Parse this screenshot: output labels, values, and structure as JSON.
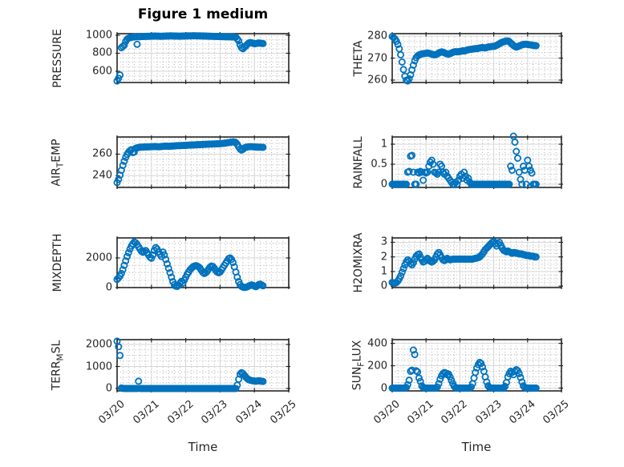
{
  "chart_data": {
    "type": "scatter",
    "title": "Figure 1 medium",
    "marker": {
      "shape": "open-circle",
      "color": "#0072BD"
    },
    "axis_color": "#262626",
    "grid": {
      "major_color": "#d6d6d6",
      "minor_color": "#b0b0b0",
      "minor_style": "dotted"
    },
    "x_axis": {
      "label": "Time",
      "start_day": 0,
      "step_hours": 1,
      "lim_days": [
        0,
        5
      ],
      "tick_days": [
        0,
        1,
        2,
        3,
        4,
        5
      ],
      "tick_labels": [
        "03/20",
        "03/21",
        "03/22",
        "03/23",
        "03/24",
        "03/25"
      ]
    },
    "subplots": [
      {
        "id": "pressure",
        "row": 0,
        "col": 0,
        "ylabel_parts": [
          {
            "text": "PRESSURE"
          }
        ],
        "ylim": [
          475,
          1018
        ],
        "yticks": [
          600,
          800,
          1000
        ],
        "ytick_labels": [
          "600",
          "800",
          "1000"
        ],
        "y_minor_step": 50,
        "values": [
          492,
          522,
          558,
          862,
          876,
          890,
          932,
          956,
          967,
          973,
          977,
          980,
          982,
          983,
          900,
          984,
          985,
          986,
          986,
          987,
          988,
          988,
          989,
          989,
          990,
          990,
          991,
          991,
          990,
          990,
          989,
          989,
          990,
          990,
          991,
          992,
          992,
          993,
          993,
          992,
          992,
          991,
          991,
          990,
          990,
          991,
          991,
          992,
          992,
          993,
          993,
          994,
          994,
          995,
          995,
          994,
          994,
          993,
          993,
          992,
          992,
          991,
          991,
          990,
          990,
          989,
          989,
          988,
          988,
          987,
          987,
          986,
          986,
          985,
          985,
          984,
          984,
          983,
          983,
          982,
          982,
          981,
          980,
          978,
          960,
          938,
          892,
          862,
          851,
          868,
          880,
          898,
          913,
          919,
          917,
          911,
          906,
          908,
          911,
          914,
          912,
          910,
          908
        ]
      },
      {
        "id": "theta",
        "row": 0,
        "col": 1,
        "ylabel_parts": [
          {
            "text": "THETA"
          }
        ],
        "ylim": [
          258.9,
          281.1
        ],
        "yticks": [
          260,
          270,
          280
        ],
        "ytick_labels": [
          "260",
          "270",
          "280"
        ],
        "y_minor_step": 2.5,
        "values": [
          279.8,
          279.3,
          278.6,
          277.6,
          276.2,
          274.2,
          271.5,
          268.2,
          264.8,
          261.8,
          259.9,
          259.6,
          260.6,
          262.4,
          264.6,
          266.8,
          268.8,
          270.2,
          271.0,
          271.4,
          271.7,
          271.9,
          272.0,
          272.1,
          272.2,
          272.3,
          272.2,
          272.0,
          271.8,
          271.6,
          271.5,
          271.6,
          271.9,
          272.3,
          272.6,
          272.8,
          272.7,
          272.4,
          272.1,
          271.9,
          271.8,
          272.0,
          272.3,
          272.6,
          272.8,
          272.9,
          272.8,
          272.9,
          273.0,
          273.1,
          273.3,
          273.2,
          273.4,
          273.6,
          273.8,
          273.9,
          274.0,
          274.1,
          274.2,
          274.3,
          274.3,
          274.4,
          274.6,
          274.7,
          274.8,
          274.7,
          274.6,
          274.8,
          275.0,
          275.1,
          275.2,
          275.3,
          275.3,
          275.5,
          275.8,
          276.1,
          276.5,
          276.9,
          277.2,
          277.4,
          277.6,
          277.8,
          277.8,
          277.5,
          276.9,
          276.3,
          275.7,
          275.3,
          275.0,
          275.2,
          275.5,
          275.8,
          276.0,
          276.2,
          276.3,
          276.3,
          276.2,
          276.1,
          276.0,
          275.9,
          275.8,
          275.7,
          275.6
        ]
      },
      {
        "id": "air_temp",
        "row": 1,
        "col": 0,
        "ylabel_parts": [
          {
            "text": "AIR"
          },
          {
            "text": "T",
            "sub": true
          },
          {
            "text": "EMP"
          }
        ],
        "ylim": [
          229,
          276
        ],
        "yticks": [
          240,
          260
        ],
        "ytick_labels": [
          "240",
          "260"
        ],
        "y_minor_step": 5,
        "values": [
          233.5,
          236.5,
          240.5,
          245.0,
          249.5,
          253.5,
          257.0,
          259.8,
          261.8,
          263.2,
          264.2,
          261.5,
          262.0,
          265.5,
          265.9,
          266.2,
          266.4,
          266.5,
          266.6,
          266.7,
          266.7,
          266.8,
          266.8,
          266.9,
          267.0,
          267.0,
          267.1,
          267.1,
          267.0,
          266.9,
          267.0,
          267.1,
          267.3,
          267.4,
          267.5,
          267.4,
          267.3,
          267.4,
          267.5,
          267.6,
          267.7,
          267.8,
          267.9,
          268.0,
          268.0,
          268.1,
          268.1,
          268.2,
          268.2,
          268.3,
          268.4,
          268.4,
          268.5,
          268.6,
          268.6,
          268.7,
          268.8,
          268.8,
          268.9,
          269.0,
          269.0,
          269.1,
          269.2,
          269.2,
          269.3,
          269.4,
          269.4,
          269.5,
          269.5,
          269.6,
          269.7,
          269.7,
          269.8,
          269.9,
          270.0,
          270.2,
          270.4,
          270.6,
          270.8,
          271.0,
          271.2,
          271.4,
          271.3,
          270.8,
          269.2,
          266.8,
          264.8,
          263.8,
          264.6,
          265.8,
          266.4,
          266.7,
          266.9,
          267.0,
          267.0,
          266.9,
          266.8,
          266.7,
          266.6,
          266.5,
          266.5,
          266.4,
          266.4
        ]
      },
      {
        "id": "rainfall",
        "row": 1,
        "col": 1,
        "ylabel_parts": [
          {
            "text": "RAINFALL"
          }
        ],
        "ylim": [
          -0.08,
          1.18
        ],
        "yticks": [
          0,
          0.5,
          1
        ],
        "ytick_labels": [
          "0",
          "0.5",
          "1"
        ],
        "y_minor_step": 0.125,
        "values": [
          0,
          0,
          0,
          0,
          0,
          0,
          0,
          0,
          0,
          0,
          0,
          0.3,
          0.32,
          0.7,
          0.72,
          0.3,
          0,
          0,
          0.3,
          0.28,
          0.32,
          0.3,
          0.1,
          0.3,
          0.28,
          0.3,
          0.45,
          0.55,
          0.6,
          0.5,
          0.3,
          0.28,
          0.25,
          0.3,
          0.5,
          0.45,
          0.3,
          0.25,
          0.3,
          0.2,
          0.15,
          0.1,
          0.05,
          0,
          0,
          0.05,
          0,
          0.1,
          0.2,
          0.25,
          0.15,
          0.3,
          0.2,
          0.1,
          0.15,
          0.05,
          0,
          0,
          0,
          0,
          0,
          0,
          0,
          0,
          0,
          0,
          0,
          0,
          0,
          0,
          0,
          0,
          0,
          0,
          0,
          0,
          0,
          0,
          0,
          0,
          0,
          0,
          0,
          0,
          0.45,
          0.35,
          1.2,
          1.05,
          0.82,
          0.65,
          0.3,
          0.12,
          0,
          0.45,
          0.35,
          0,
          0.6,
          0.45,
          0.35,
          0.28,
          0,
          0,
          0
        ]
      },
      {
        "id": "mixdepth",
        "row": 2,
        "col": 0,
        "ylabel_parts": [
          {
            "text": "MIXDEPTH"
          }
        ],
        "ylim": [
          0,
          3350
        ],
        "yticks": [
          0,
          2000
        ],
        "ytick_labels": [
          "0",
          "2000"
        ],
        "y_minor_step": 500,
        "values": [
          550,
          650,
          780,
          950,
          1200,
          1500,
          1800,
          2100,
          2350,
          2600,
          2800,
          2950,
          3080,
          3020,
          2900,
          2750,
          2600,
          2450,
          2380,
          2420,
          2500,
          2350,
          2200,
          2050,
          1980,
          2200,
          2500,
          2700,
          2600,
          2400,
          2250,
          2100,
          2400,
          2200,
          1900,
          1600,
          1300,
          1000,
          700,
          400,
          200,
          100,
          80,
          150,
          300,
          420,
          300,
          500,
          700,
          900,
          1050,
          1200,
          1300,
          1400,
          1450,
          1480,
          1450,
          1400,
          1300,
          1150,
          1020,
          950,
          1000,
          1100,
          1250,
          1380,
          1450,
          1420,
          1300,
          1150,
          1050,
          1000,
          1050,
          1200,
          1350,
          1500,
          1650,
          1800,
          1950,
          2000,
          1900,
          1700,
          1400,
          1050,
          700,
          400,
          200,
          80,
          30,
          10,
          20,
          50,
          100,
          150,
          180,
          150,
          100,
          60,
          120,
          200,
          230,
          180,
          120
        ]
      },
      {
        "id": "h2omixra",
        "row": 2,
        "col": 1,
        "ylabel_parts": [
          {
            "text": "H2OMIXRA"
          }
        ],
        "ylim": [
          -0.1,
          3.3
        ],
        "yticks": [
          0,
          1,
          2,
          3
        ],
        "ytick_labels": [
          "0",
          "1",
          "2",
          "3"
        ],
        "y_minor_step": 0.25,
        "values": [
          0.25,
          0.22,
          0.2,
          0.25,
          0.35,
          0.5,
          0.7,
          0.95,
          1.2,
          1.45,
          1.65,
          1.8,
          1.7,
          1.55,
          1.45,
          1.6,
          1.85,
          2.05,
          2.15,
          2.2,
          2.0,
          1.8,
          1.65,
          1.7,
          1.8,
          1.9,
          1.8,
          1.7,
          1.65,
          1.7,
          1.8,
          2.0,
          2.2,
          2.3,
          2.15,
          1.95,
          1.8,
          1.75,
          1.8,
          1.9,
          1.85,
          1.8,
          1.82,
          1.85,
          1.85,
          1.85,
          1.85,
          1.85,
          1.85,
          1.85,
          1.85,
          1.85,
          1.85,
          1.85,
          1.85,
          1.85,
          1.85,
          1.85,
          1.88,
          1.9,
          1.92,
          1.95,
          2.0,
          2.1,
          2.2,
          2.35,
          2.5,
          2.6,
          2.7,
          2.8,
          2.9,
          3.0,
          3.05,
          2.9,
          2.75,
          2.9,
          3.0,
          2.8,
          2.6,
          2.45,
          2.4,
          2.35,
          2.4,
          2.35,
          2.3,
          2.25,
          2.3,
          2.3,
          2.25,
          2.25,
          2.2,
          2.2,
          2.2,
          2.15,
          2.15,
          2.1,
          2.1,
          2.1,
          2.05,
          2.05,
          2.05,
          2.0,
          2.0
        ]
      },
      {
        "id": "terr_msl",
        "row": 3,
        "col": 0,
        "ylabel_parts": [
          {
            "text": "TERR"
          },
          {
            "text": "M",
            "sub": true
          },
          {
            "text": "SL"
          }
        ],
        "ylim": [
          -110,
          2220
        ],
        "yticks": [
          0,
          1000,
          2000
        ],
        "ytick_labels": [
          "0",
          "1000",
          "2000"
        ],
        "y_minor_step": 250,
        "values": [
          2150,
          1900,
          1500,
          20,
          5,
          0,
          0,
          0,
          0,
          0,
          0,
          0,
          0,
          0,
          0,
          330,
          0,
          0,
          0,
          0,
          0,
          0,
          0,
          0,
          0,
          0,
          0,
          0,
          0,
          0,
          0,
          0,
          0,
          0,
          0,
          0,
          0,
          0,
          0,
          0,
          0,
          0,
          0,
          0,
          0,
          0,
          0,
          0,
          0,
          0,
          0,
          0,
          0,
          0,
          0,
          0,
          0,
          0,
          0,
          0,
          0,
          0,
          0,
          0,
          0,
          0,
          0,
          0,
          0,
          0,
          0,
          0,
          0,
          0,
          0,
          0,
          0,
          0,
          0,
          0,
          0,
          0,
          0,
          0,
          150,
          420,
          650,
          720,
          680,
          600,
          520,
          450,
          400,
          380,
          360,
          350,
          340,
          330,
          340,
          350,
          340,
          330,
          320
        ]
      },
      {
        "id": "sun_flux",
        "row": 3,
        "col": 1,
        "ylabel_parts": [
          {
            "text": "SUN"
          },
          {
            "text": "F",
            "sub": true
          },
          {
            "text": "LUX"
          }
        ],
        "ylim": [
          -25,
          433
        ],
        "yticks": [
          0,
          200,
          400
        ],
        "ytick_labels": [
          "0",
          "200",
          "400"
        ],
        "y_minor_step": 50,
        "values": [
          0,
          0,
          0,
          0,
          0,
          0,
          0,
          0,
          0,
          0,
          5,
          30,
          70,
          150,
          160,
          340,
          300,
          155,
          145,
          90,
          60,
          20,
          5,
          0,
          0,
          0,
          0,
          0,
          0,
          0,
          0,
          0,
          10,
          40,
          80,
          110,
          130,
          140,
          135,
          120,
          125,
          100,
          70,
          40,
          15,
          3,
          0,
          0,
          0,
          0,
          0,
          0,
          0,
          0,
          0,
          0,
          10,
          40,
          90,
          140,
          180,
          210,
          230,
          220,
          190,
          150,
          100,
          55,
          20,
          5,
          0,
          0,
          0,
          0,
          0,
          0,
          0,
          0,
          0,
          0,
          15,
          50,
          100,
          130,
          150,
          140,
          120,
          150,
          165,
          155,
          130,
          95,
          55,
          20,
          5,
          0,
          0,
          0,
          0,
          0,
          0,
          0,
          0
        ]
      }
    ]
  }
}
